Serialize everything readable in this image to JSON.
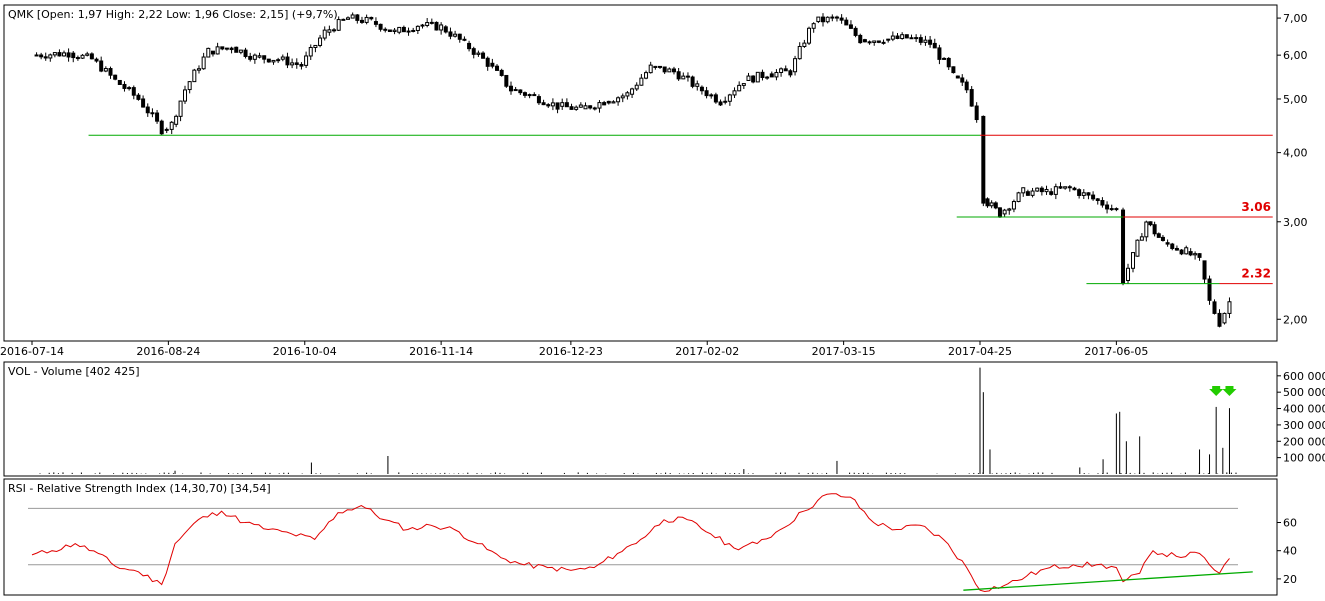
{
  "price_panel": {
    "legend": "QMK [Open: 1,97  High: 2,22  Low: 1,96  Close: 2,15] (+9,7%)",
    "annotations": [
      "3.06",
      "2.32"
    ]
  },
  "volume_panel": {
    "legend": "VOL - Volume [402 425]"
  },
  "rsi_panel": {
    "legend": "RSI - Relative Strength Index (14,30,70) [34,54]"
  },
  "colors": {
    "candle": "#000000",
    "support_line": "#00aa00",
    "resistance_line": "#e00000",
    "rsi_line": "#e00000",
    "arrow": "#22cc00",
    "level_line": "#999999"
  },
  "chart_data": [
    {
      "type": "candlestick",
      "title": "QMK",
      "x_ticks": [
        "2016-07-14",
        "2016-08-24",
        "2016-10-04",
        "2016-11-14",
        "2016-12-23",
        "2017-02-02",
        "2017-03-15",
        "2017-04-25",
        "2017-06-05"
      ],
      "y_scale": "log",
      "y_ticks": [
        "2,00",
        "3,00",
        "4,00",
        "5,00",
        "6,00",
        "7,00"
      ],
      "ylim": [
        1.85,
        7.3
      ],
      "last_bar": {
        "open": 1.97,
        "high": 2.22,
        "low": 1.96,
        "close": 2.15,
        "change_pct": 9.7
      },
      "close_path": [
        [
          "2016-07-14",
          6.0
        ],
        [
          "2016-07-25",
          6.05
        ],
        [
          "2016-08-01",
          5.9
        ],
        [
          "2016-08-08",
          5.4
        ],
        [
          "2016-08-15",
          5.0
        ],
        [
          "2016-08-22",
          4.4
        ],
        [
          "2016-08-25",
          4.5
        ],
        [
          "2016-08-29",
          5.2
        ],
        [
          "2016-09-05",
          6.1
        ],
        [
          "2016-09-12",
          6.2
        ],
        [
          "2016-09-19",
          5.95
        ],
        [
          "2016-09-26",
          5.9
        ],
        [
          "2016-10-03",
          5.75
        ],
        [
          "2016-10-10",
          6.6
        ],
        [
          "2016-10-17",
          7.0
        ],
        [
          "2016-10-24",
          6.9
        ],
        [
          "2016-10-31",
          6.6
        ],
        [
          "2016-11-07",
          6.8
        ],
        [
          "2016-11-14",
          6.75
        ],
        [
          "2016-11-21",
          6.3
        ],
        [
          "2016-11-28",
          5.8
        ],
        [
          "2016-12-05",
          5.2
        ],
        [
          "2016-12-12",
          5.05
        ],
        [
          "2016-12-19",
          4.85
        ],
        [
          "2016-12-26",
          4.8
        ],
        [
          "2017-01-02",
          4.95
        ],
        [
          "2017-01-09",
          5.1
        ],
        [
          "2017-01-16",
          5.7
        ],
        [
          "2017-01-23",
          5.6
        ],
        [
          "2017-01-30",
          5.25
        ],
        [
          "2017-02-06",
          4.95
        ],
        [
          "2017-02-13",
          5.4
        ],
        [
          "2017-02-20",
          5.55
        ],
        [
          "2017-02-27",
          5.6
        ],
        [
          "2017-03-06",
          6.9
        ],
        [
          "2017-03-13",
          7.0
        ],
        [
          "2017-03-20",
          6.4
        ],
        [
          "2017-03-27",
          6.4
        ],
        [
          "2017-04-03",
          6.45
        ],
        [
          "2017-04-10",
          6.3
        ],
        [
          "2017-04-17",
          5.5
        ],
        [
          "2017-04-21",
          5.2
        ],
        [
          "2017-04-24",
          4.65
        ],
        [
          "2017-04-26",
          3.3
        ],
        [
          "2017-05-01",
          3.1
        ],
        [
          "2017-05-08",
          3.4
        ],
        [
          "2017-05-15",
          3.4
        ],
        [
          "2017-05-22",
          3.45
        ],
        [
          "2017-05-29",
          3.3
        ],
        [
          "2017-06-05",
          3.15
        ],
        [
          "2017-06-07",
          2.35
        ],
        [
          "2017-06-10",
          2.6
        ],
        [
          "2017-06-14",
          3.0
        ],
        [
          "2017-06-19",
          2.75
        ],
        [
          "2017-06-26",
          2.65
        ],
        [
          "2017-06-30",
          2.55
        ],
        [
          "2017-07-03",
          2.15
        ],
        [
          "2017-07-06",
          1.97
        ],
        [
          "2017-07-09",
          2.15
        ]
      ],
      "horizontal_lines": [
        {
          "value": 4.3,
          "color": "#00aa00",
          "from": "2016-07-31",
          "to": "2017-04-25"
        },
        {
          "value": 4.3,
          "color": "#e00000",
          "from": "2017-04-25",
          "to": "end"
        },
        {
          "value": 3.06,
          "color": "#00aa00",
          "from": "2017-04-18",
          "to": "2017-06-07",
          "label": ""
        },
        {
          "value": 3.06,
          "color": "#e00000",
          "from": "2017-06-07",
          "to": "end",
          "label": "3.06"
        },
        {
          "value": 2.32,
          "color": "#00aa00",
          "from": "2017-05-27",
          "to": "2017-07-06"
        },
        {
          "value": 2.32,
          "color": "#e00000",
          "from": "2017-07-06",
          "to": "end",
          "label": "2.32"
        }
      ]
    },
    {
      "type": "bar",
      "title": "VOL - Volume",
      "current": 402425,
      "y_ticks": [
        "100 000",
        "200 000",
        "300 000",
        "400 000",
        "500 000",
        "600 000"
      ],
      "ylim": [
        0,
        660000
      ],
      "spikes": [
        [
          "2016-08-26",
          20000
        ],
        [
          "2016-10-06",
          70000
        ],
        [
          "2016-10-29",
          110000
        ],
        [
          "2017-02-13",
          30000
        ],
        [
          "2017-03-13",
          80000
        ],
        [
          "2017-04-25",
          650000
        ],
        [
          "2017-04-26",
          500000
        ],
        [
          "2017-04-28",
          150000
        ],
        [
          "2017-05-25",
          40000
        ],
        [
          "2017-06-01",
          90000
        ],
        [
          "2017-06-05",
          370000
        ],
        [
          "2017-06-06",
          380000
        ],
        [
          "2017-06-08",
          200000
        ],
        [
          "2017-06-12",
          230000
        ],
        [
          "2017-06-30",
          150000
        ],
        [
          "2017-07-03",
          120000
        ],
        [
          "2017-07-05",
          410000
        ],
        [
          "2017-07-07",
          160000
        ],
        [
          "2017-07-09",
          402425
        ]
      ],
      "arrows_at": [
        "2017-07-05",
        "2017-07-09"
      ]
    },
    {
      "type": "line",
      "title": "RSI - Relative Strength Index (14,30,70)",
      "current": 34.54,
      "y_ticks": [
        "20",
        "40",
        "60"
      ],
      "ylim": [
        10,
        88
      ],
      "levels": [
        30,
        70
      ],
      "values": [
        [
          "2016-07-14",
          37
        ],
        [
          "2016-07-20",
          40
        ],
        [
          "2016-07-27",
          45
        ],
        [
          "2016-08-03",
          38
        ],
        [
          "2016-08-08",
          29
        ],
        [
          "2016-08-15",
          25
        ],
        [
          "2016-08-22",
          16
        ],
        [
          "2016-08-26",
          45
        ],
        [
          "2016-09-02",
          62
        ],
        [
          "2016-09-09",
          68
        ],
        [
          "2016-09-16",
          60
        ],
        [
          "2016-09-23",
          55
        ],
        [
          "2016-09-30",
          52
        ],
        [
          "2016-10-07",
          48
        ],
        [
          "2016-10-14",
          67
        ],
        [
          "2016-10-21",
          72
        ],
        [
          "2016-10-28",
          62
        ],
        [
          "2016-11-04",
          55
        ],
        [
          "2016-11-11",
          58
        ],
        [
          "2016-11-18",
          55
        ],
        [
          "2016-11-25",
          45
        ],
        [
          "2016-12-02",
          35
        ],
        [
          "2016-12-09",
          30
        ],
        [
          "2016-12-16",
          28
        ],
        [
          "2016-12-23",
          26
        ],
        [
          "2016-12-30",
          28
        ],
        [
          "2017-01-06",
          38
        ],
        [
          "2017-01-13",
          48
        ],
        [
          "2017-01-20",
          62
        ],
        [
          "2017-01-27",
          62
        ],
        [
          "2017-02-03",
          52
        ],
        [
          "2017-02-10",
          42
        ],
        [
          "2017-02-17",
          45
        ],
        [
          "2017-02-24",
          55
        ],
        [
          "2017-03-03",
          68
        ],
        [
          "2017-03-10",
          80
        ],
        [
          "2017-03-17",
          78
        ],
        [
          "2017-03-24",
          60
        ],
        [
          "2017-03-31",
          55
        ],
        [
          "2017-04-07",
          58
        ],
        [
          "2017-04-14",
          48
        ],
        [
          "2017-04-21",
          28
        ],
        [
          "2017-04-25",
          12
        ],
        [
          "2017-05-02",
          15
        ],
        [
          "2017-05-09",
          22
        ],
        [
          "2017-05-16",
          28
        ],
        [
          "2017-05-23",
          30
        ],
        [
          "2017-05-30",
          30
        ],
        [
          "2017-06-05",
          28
        ],
        [
          "2017-06-07",
          18
        ],
        [
          "2017-06-12",
          24
        ],
        [
          "2017-06-16",
          40
        ],
        [
          "2017-06-23",
          36
        ],
        [
          "2017-06-30",
          38
        ],
        [
          "2017-07-03",
          30
        ],
        [
          "2017-07-06",
          24
        ],
        [
          "2017-07-09",
          34.54
        ]
      ],
      "trendline": [
        [
          "2017-04-20",
          12
        ],
        [
          "2017-07-16",
          25
        ]
      ]
    }
  ]
}
